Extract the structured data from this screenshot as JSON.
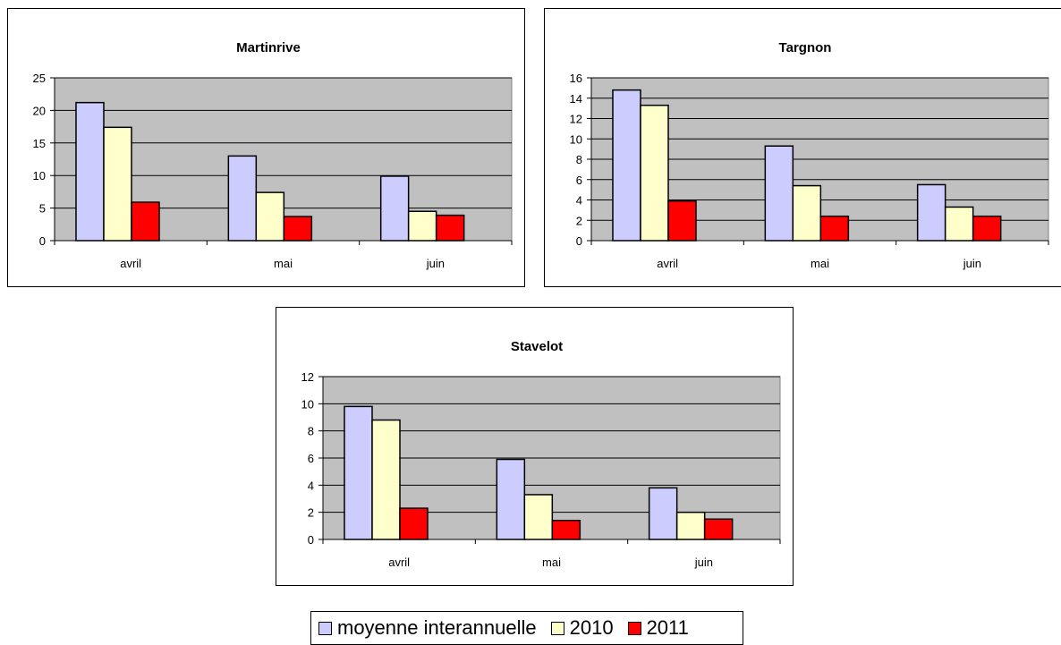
{
  "chart_data": [
    {
      "type": "bar",
      "title": "Martinrive",
      "categories": [
        "avril",
        "mai",
        "juin"
      ],
      "series": [
        {
          "name": "moyenne interannuelle",
          "values": [
            21.2,
            13.0,
            9.9
          ]
        },
        {
          "name": "2010",
          "values": [
            17.4,
            7.4,
            4.5
          ]
        },
        {
          "name": "2011",
          "values": [
            5.9,
            3.7,
            3.9
          ]
        }
      ],
      "ylim": [
        0,
        25
      ],
      "yticks": [
        0,
        5,
        10,
        15,
        20,
        25
      ],
      "xlabel": "",
      "ylabel": ""
    },
    {
      "type": "bar",
      "title": "Targnon",
      "categories": [
        "avril",
        "mai",
        "juin"
      ],
      "series": [
        {
          "name": "moyenne interannuelle",
          "values": [
            14.8,
            9.3,
            5.5
          ]
        },
        {
          "name": "2010",
          "values": [
            13.3,
            5.4,
            3.3
          ]
        },
        {
          "name": "2011",
          "values": [
            3.9,
            2.4,
            2.4
          ]
        }
      ],
      "ylim": [
        0,
        16
      ],
      "yticks": [
        0,
        2,
        4,
        6,
        8,
        10,
        12,
        14,
        16
      ],
      "xlabel": "",
      "ylabel": ""
    },
    {
      "type": "bar",
      "title": "Stavelot",
      "categories": [
        "avril",
        "mai",
        "juin"
      ],
      "series": [
        {
          "name": "moyenne interannuelle",
          "values": [
            9.8,
            5.9,
            3.8
          ]
        },
        {
          "name": "2010",
          "values": [
            8.8,
            3.3,
            2.0
          ]
        },
        {
          "name": "2011",
          "values": [
            2.3,
            1.4,
            1.5
          ]
        }
      ],
      "ylim": [
        0,
        12
      ],
      "yticks": [
        0,
        2,
        4,
        6,
        8,
        10,
        12
      ],
      "xlabel": "",
      "ylabel": ""
    }
  ],
  "legend": {
    "items": [
      {
        "label": "moyenne interannuelle",
        "color": "#ccccff"
      },
      {
        "label": "2010",
        "color": "#ffffcc"
      },
      {
        "label": "2011",
        "color": "#ff0000"
      }
    ]
  },
  "colors": {
    "plot_area": "#c0c0c0",
    "gridline": "#000000",
    "series": [
      "#ccccff",
      "#ffffcc",
      "#ff0000"
    ]
  }
}
